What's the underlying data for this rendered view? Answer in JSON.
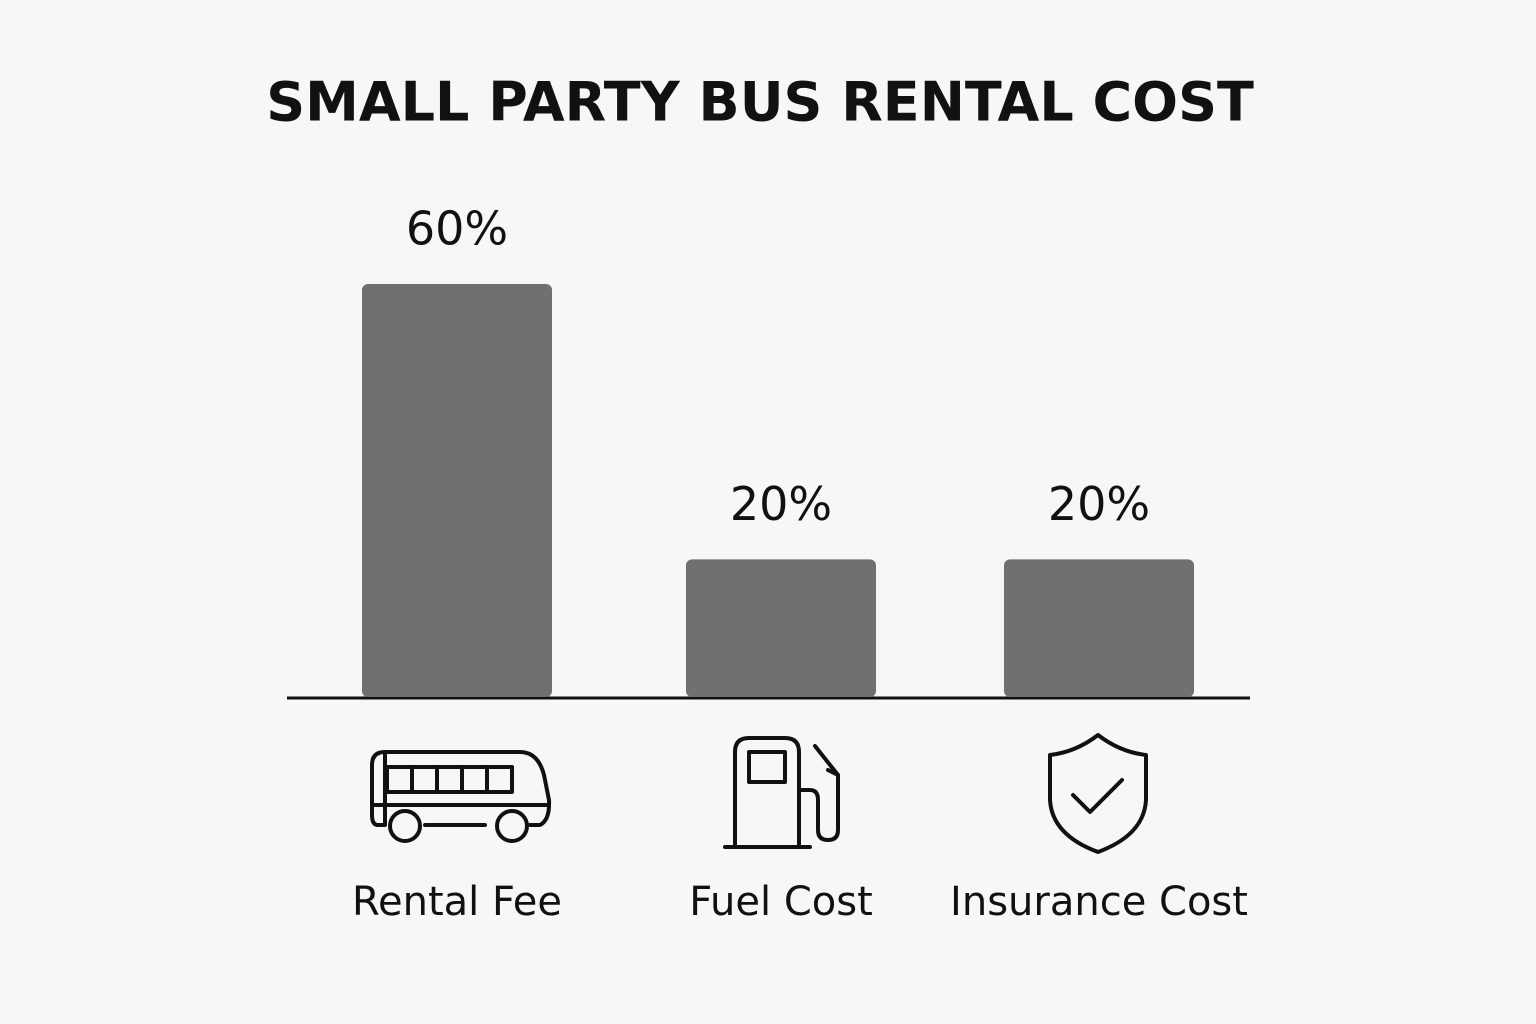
{
  "chart_data": {
    "type": "bar",
    "title": "SMALL PARTY BUS RENTAL COST",
    "categories": [
      "Rental Fee",
      "Fuel Cost",
      "Insurance Cost"
    ],
    "values": [
      60,
      20,
      20
    ],
    "value_labels": [
      "60%",
      "20%",
      "20%"
    ],
    "color": "#6f706f"
  }
}
